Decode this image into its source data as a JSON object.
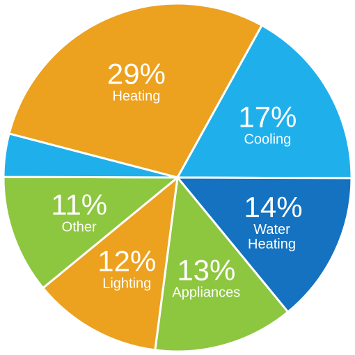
{
  "chart_data": {
    "type": "pie",
    "categories": [
      "Heating",
      "Cooling",
      "Water Heating",
      "Appliances",
      "Lighting",
      "Other",
      null
    ],
    "values": [
      29,
      17,
      14,
      13,
      12,
      11,
      4
    ],
    "value_labels": [
      "29%",
      "17%",
      "14%",
      "13%",
      "12%",
      "11%",
      null
    ],
    "colors": [
      "#eca11f",
      "#1fb0ec",
      "#1472c0",
      "#8dc63f",
      "#eca11f",
      "#8dc63f",
      "#1fb0ec"
    ]
  }
}
